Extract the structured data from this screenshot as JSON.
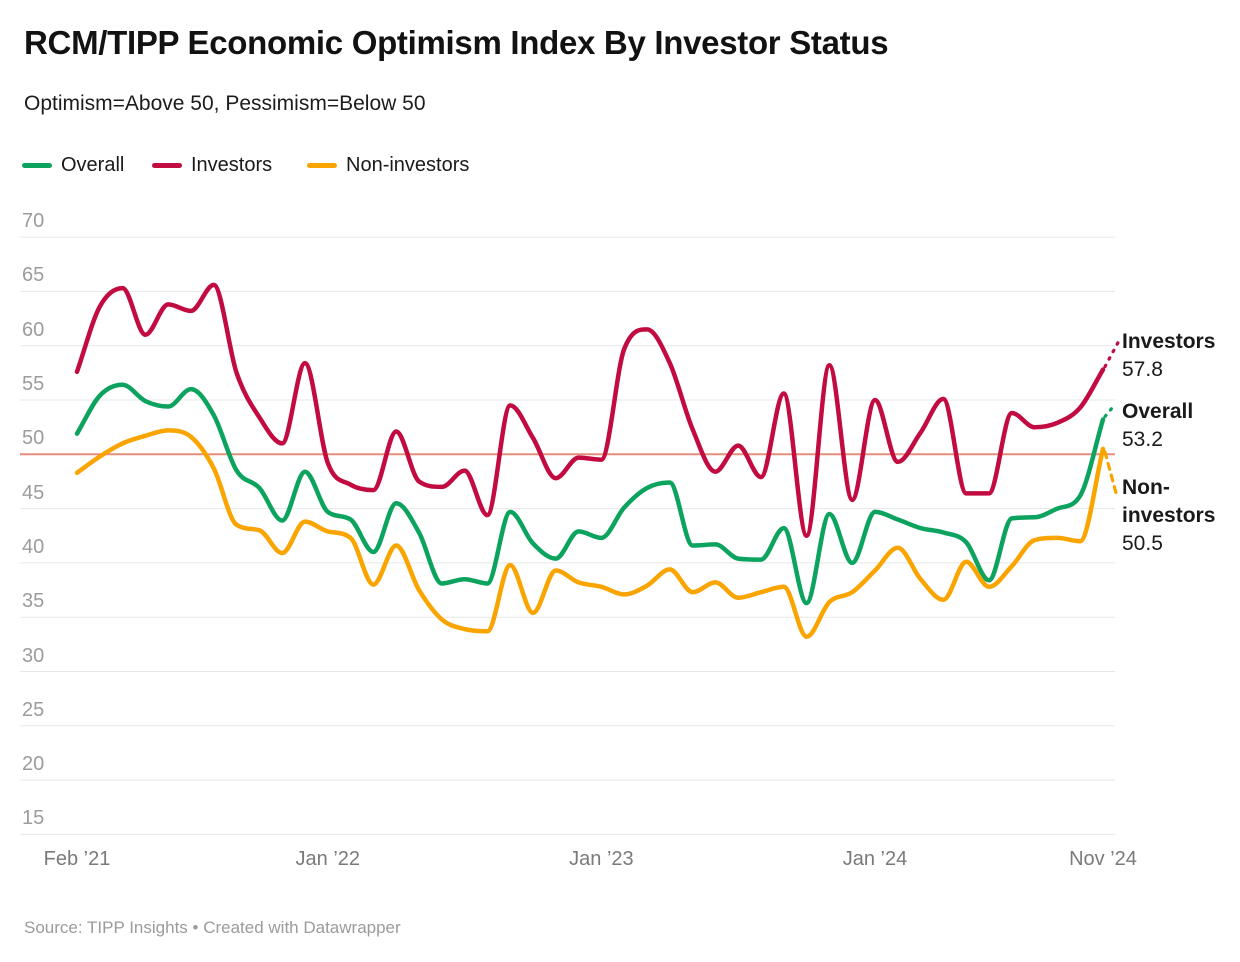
{
  "header": {
    "title": "RCM/TIPP Economic Optimism Index By Investor Status",
    "subtitle": "Optimism=Above 50, Pessimism=Below 50"
  },
  "legend": {
    "items": [
      {
        "label": "Overall",
        "color": "#0CA35F"
      },
      {
        "label": "Investors",
        "color": "#C10B41"
      },
      {
        "label": "Non-investors",
        "color": "#FAA400"
      }
    ]
  },
  "chart_data": {
    "type": "line",
    "title": "RCM/TIPP Economic Optimism Index By Investor Status",
    "subtitle": "Optimism=Above 50, Pessimism=Below 50",
    "x_tick_labels": [
      "Feb ’21",
      "Jan ’22",
      "Jan ’23",
      "Jan ’24",
      "Nov ’24"
    ],
    "y_ticks": [
      70,
      65,
      60,
      55,
      50,
      45,
      40,
      35,
      30,
      25,
      20,
      15
    ],
    "ylim": [
      15,
      70
    ],
    "grid": "horizontal",
    "legend_position": "top-left",
    "reference_line": {
      "value": 50,
      "color": "#E58E7F",
      "meaning": "Optimism above 50, pessimism below 50"
    },
    "months": [
      "2021-02",
      "2021-03",
      "2021-04",
      "2021-05",
      "2021-06",
      "2021-07",
      "2021-08",
      "2021-09",
      "2021-10",
      "2021-11",
      "2021-12",
      "2022-01",
      "2022-02",
      "2022-03",
      "2022-04",
      "2022-05",
      "2022-06",
      "2022-07",
      "2022-08",
      "2022-09",
      "2022-10",
      "2022-11",
      "2022-12",
      "2023-01",
      "2023-02",
      "2023-03",
      "2023-04",
      "2023-05",
      "2023-06",
      "2023-07",
      "2023-08",
      "2023-09",
      "2023-10",
      "2023-11",
      "2023-12",
      "2024-01",
      "2024-02",
      "2024-03",
      "2024-04",
      "2024-05",
      "2024-06",
      "2024-07",
      "2024-08",
      "2024-09",
      "2024-10",
      "2024-11"
    ],
    "series": [
      {
        "name": "Overall",
        "color": "#0CA35F",
        "values": [
          51.9,
          55.4,
          56.4,
          54.9,
          54.4,
          56.0,
          53.6,
          48.5,
          46.9,
          43.9,
          48.4,
          44.7,
          44.0,
          41.0,
          45.5,
          42.8,
          38.1,
          38.5,
          38.1,
          44.7,
          41.8,
          40.4,
          42.9,
          42.3,
          45.1,
          46.9,
          47.4,
          41.6,
          41.7,
          40.4,
          40.3,
          43.2,
          36.3,
          44.5,
          40.0,
          44.7,
          44.0,
          43.2,
          42.8,
          41.9,
          38.4,
          44.1,
          44.2,
          45.0,
          46.2,
          53.2
        ]
      },
      {
        "name": "Investors",
        "color": "#C10B41",
        "values": [
          57.6,
          63.6,
          65.3,
          61.0,
          63.8,
          63.2,
          65.6,
          57.5,
          53.4,
          51.0,
          58.4,
          49.2,
          47.2,
          46.7,
          52.1,
          47.5,
          47.0,
          48.5,
          44.4,
          54.5,
          51.5,
          47.8,
          49.7,
          49.5,
          59.7,
          61.5,
          58.4,
          52.3,
          48.4,
          50.8,
          47.9,
          55.6,
          42.5,
          58.2,
          45.8,
          55.0,
          49.3,
          52.0,
          55.1,
          46.4,
          46.4,
          53.8,
          52.5,
          52.9,
          54.3,
          57.8
        ]
      },
      {
        "name": "Non-investors",
        "color": "#FAA400",
        "values": [
          48.3,
          49.8,
          51.0,
          51.7,
          52.2,
          51.6,
          48.7,
          43.5,
          43.0,
          40.9,
          43.8,
          42.9,
          42.3,
          38.0,
          41.6,
          37.5,
          34.8,
          33.9,
          33.7,
          39.8,
          35.4,
          39.3,
          38.2,
          37.8,
          37.1,
          37.9,
          39.4,
          37.3,
          38.2,
          36.8,
          37.3,
          37.8,
          33.2,
          36.4,
          37.3,
          39.3,
          41.4,
          38.5,
          36.6,
          40.1,
          37.8,
          39.7,
          42.1,
          42.3,
          42.0,
          50.5
        ]
      }
    ],
    "end_labels": [
      {
        "series": "Investors",
        "value": "57.8"
      },
      {
        "series": "Overall",
        "value": "53.2"
      },
      {
        "series": "Non-investors",
        "value": "50.5"
      }
    ]
  },
  "footer": {
    "source": "Source: TIPP Insights • Created with Datawrapper"
  }
}
